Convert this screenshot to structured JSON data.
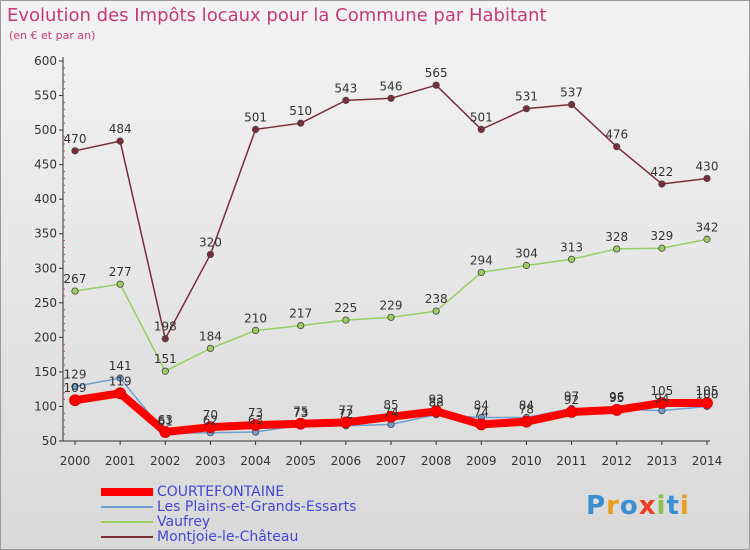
{
  "title": "Evolution des Impôts locaux pour la Commune par Habitant",
  "subtitle": "(en € et par an)",
  "logo": {
    "text": "Proxiti",
    "letter_colors": [
      "#3a8fd1",
      "#e8a020",
      "#3a8fd1",
      "#e84020",
      "#8bc34a",
      "#3a8fd1",
      "#e8a020"
    ]
  },
  "chart_data": {
    "type": "line",
    "title": "Evolution des Impôts locaux pour la Commune par Habitant",
    "subtitle": "(en € et par an)",
    "x": [
      "2000",
      "2001",
      "2002",
      "2003",
      "2004",
      "2005",
      "2006",
      "2007",
      "2008",
      "2009",
      "2010",
      "2011",
      "2012",
      "2013",
      "2014"
    ],
    "ylim": [
      50,
      600
    ],
    "yticks": [
      50,
      100,
      150,
      200,
      250,
      300,
      350,
      400,
      450,
      500,
      550,
      600
    ],
    "grid": false,
    "legend_position": "bottom-left",
    "series": [
      {
        "name": "COURTEFONTAINE",
        "color": "#ff0000",
        "values": [
          109,
          119,
          63,
          70,
          73,
          75,
          77,
          85,
          93,
          74,
          78,
          92,
          95,
          105,
          105
        ]
      },
      {
        "name": "Les Plains-et-Grands-Essarts",
        "color": "#6e9fd2",
        "values": [
          129,
          141,
          61,
          62,
          63,
          73,
          72,
          74,
          88,
          84,
          84,
          97,
          96,
          94,
          100
        ]
      },
      {
        "name": "Vaufrey",
        "color": "#9acd60",
        "values": [
          267,
          277,
          151,
          184,
          210,
          217,
          225,
          229,
          238,
          294,
          304,
          313,
          328,
          329,
          342
        ]
      },
      {
        "name": "Montjoie-le-Château",
        "color": "#7d2d3a",
        "values": [
          470,
          484,
          198,
          320,
          501,
          510,
          543,
          546,
          565,
          501,
          531,
          537,
          476,
          422,
          430
        ]
      }
    ],
    "data_labels": [
      [
        109,
        119,
        63,
        70,
        73,
        75,
        77,
        85,
        93,
        74,
        78,
        92,
        95,
        105,
        105
      ],
      [
        129,
        141,
        61,
        62,
        63,
        73,
        72,
        74,
        88,
        84,
        84,
        97,
        96,
        94,
        100
      ],
      [
        267,
        277,
        151,
        184,
        210,
        217,
        225,
        229,
        238,
        294,
        304,
        313,
        328,
        329,
        342
      ],
      [
        470,
        484,
        198,
        320,
        501,
        510,
        543,
        546,
        565,
        501,
        531,
        537,
        476,
        422,
        430
      ]
    ]
  }
}
